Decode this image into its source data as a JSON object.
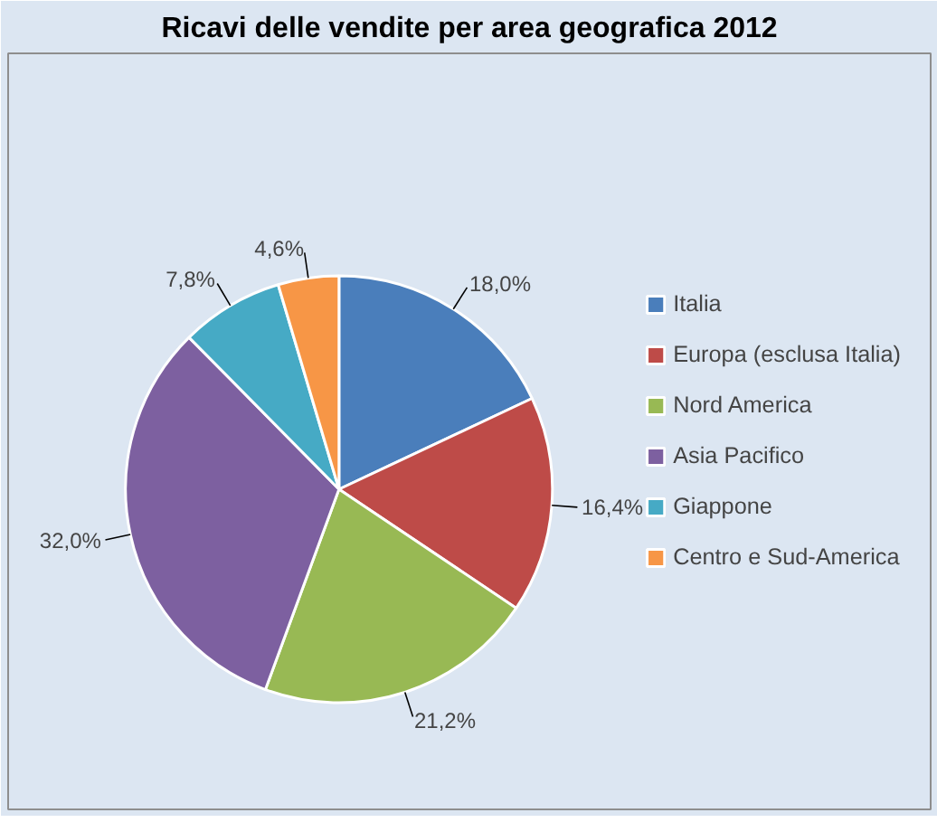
{
  "chart_data": {
    "type": "pie",
    "title": "Ricavi delle vendite per area geografica 2012",
    "categories": [
      "Italia",
      "Europa (esclusa Italia)",
      "Nord America",
      "Asia Pacifico",
      "Giappone",
      "Centro e Sud-America"
    ],
    "values": [
      18.0,
      16.4,
      21.2,
      32.0,
      7.8,
      4.6
    ],
    "colors": [
      "#4a7ebb",
      "#be4b48",
      "#98b954",
      "#7d60a0",
      "#46aac5",
      "#f79646"
    ],
    "value_labels": [
      "18,0%",
      "16,4%",
      "21,2%",
      "32,0%",
      "7,8%",
      "4,6%"
    ],
    "legend": "right"
  }
}
